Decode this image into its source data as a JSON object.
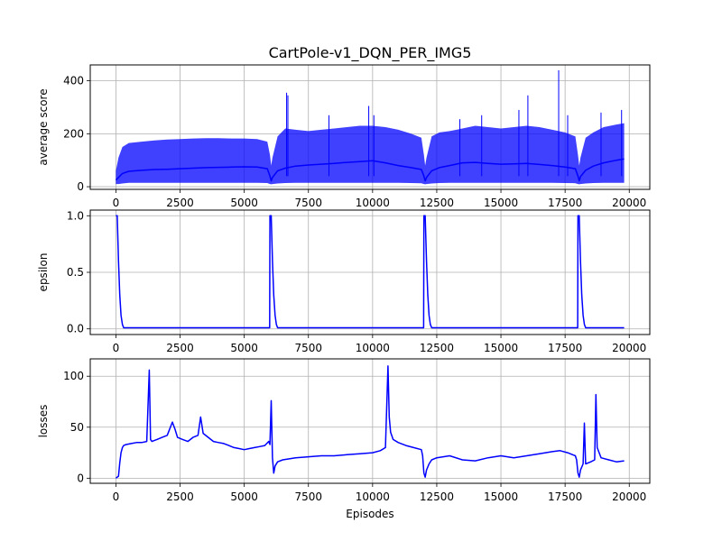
{
  "colors": {
    "line": "#0000ff",
    "band": "#0000ff",
    "grid": "#b0b0b0"
  },
  "chart_data": [
    {
      "type": "line",
      "title": "CartPole-v1_DQN_PER_IMG5",
      "xlabel": "",
      "ylabel": "average score",
      "xlim": [
        -1000,
        20800
      ],
      "ylim": [
        -10,
        460
      ],
      "xticks": [
        0,
        2500,
        5000,
        7500,
        10000,
        12500,
        15000,
        17500,
        20000
      ],
      "xtick_labels": [
        "0",
        "2500",
        "5000",
        "7500",
        "10000",
        "12500",
        "15000",
        "17500",
        "20000"
      ],
      "yticks": [
        0,
        200,
        400
      ],
      "ytick_labels": [
        "0",
        "200",
        "400"
      ],
      "grid": true,
      "series": [
        {
          "name": "",
          "x": [
            0,
            100,
            250,
            500,
            1000,
            1500,
            2000,
            2500,
            3000,
            3500,
            4000,
            4500,
            5000,
            5500,
            5900,
            6000,
            6050,
            6100,
            6300,
            6600,
            7000,
            7500,
            8000,
            8500,
            9000,
            9500,
            10000,
            10500,
            11000,
            11500,
            11900,
            12000,
            12050,
            12100,
            12300,
            12600,
            13000,
            13500,
            14000,
            14500,
            15000,
            15500,
            16000,
            16500,
            17000,
            17500,
            17900,
            18000,
            18050,
            18100,
            18300,
            18600,
            19000,
            19500,
            19800
          ],
          "values": [
            25,
            35,
            50,
            58,
            62,
            65,
            66,
            68,
            70,
            72,
            73,
            74,
            75,
            74,
            68,
            40,
            22,
            35,
            60,
            70,
            78,
            82,
            85,
            88,
            92,
            95,
            98,
            90,
            80,
            72,
            65,
            40,
            22,
            35,
            60,
            72,
            80,
            90,
            92,
            88,
            85,
            86,
            88,
            84,
            80,
            74,
            68,
            40,
            22,
            38,
            62,
            78,
            90,
            100,
            105
          ]
        },
        {
          "name": "",
          "role": "spread-band",
          "x": [
            0,
            100,
            250,
            500,
            1000,
            1500,
            2000,
            2500,
            3000,
            3500,
            4000,
            4500,
            5000,
            5500,
            5900,
            6000,
            6050,
            6100,
            6300,
            6600,
            7000,
            7500,
            8000,
            8500,
            9000,
            9500,
            10000,
            10500,
            11000,
            11500,
            11900,
            12000,
            12050,
            12100,
            12300,
            12600,
            13000,
            13500,
            14000,
            14500,
            15000,
            15500,
            16000,
            16500,
            17000,
            17500,
            17900,
            18000,
            18050,
            18100,
            18300,
            18600,
            19000,
            19500,
            19800
          ],
          "upper": [
            60,
            110,
            150,
            165,
            170,
            175,
            178,
            180,
            182,
            183,
            183,
            182,
            182,
            180,
            170,
            120,
            80,
            110,
            190,
            220,
            215,
            210,
            215,
            220,
            225,
            230,
            230,
            225,
            215,
            200,
            185,
            120,
            80,
            110,
            190,
            205,
            210,
            220,
            230,
            225,
            220,
            225,
            230,
            225,
            215,
            205,
            190,
            120,
            80,
            110,
            185,
            205,
            225,
            235,
            240
          ],
          "lower": [
            10,
            10,
            12,
            15,
            15,
            15,
            15,
            15,
            15,
            15,
            15,
            15,
            15,
            15,
            14,
            10,
            9,
            10,
            12,
            14,
            15,
            15,
            15,
            15,
            15,
            15,
            15,
            15,
            15,
            14,
            13,
            10,
            9,
            10,
            12,
            14,
            15,
            15,
            15,
            15,
            15,
            15,
            15,
            15,
            15,
            14,
            13,
            10,
            9,
            10,
            12,
            14,
            15,
            15,
            15
          ],
          "peaks": [
            [
              6650,
              355
            ],
            [
              6700,
              345
            ],
            [
              8300,
              270
            ],
            [
              9850,
              305
            ],
            [
              10050,
              270
            ],
            [
              13400,
              255
            ],
            [
              14250,
              270
            ],
            [
              15700,
              290
            ],
            [
              16050,
              345
            ],
            [
              17250,
              440
            ],
            [
              17600,
              270
            ],
            [
              18900,
              280
            ],
            [
              19700,
              290
            ]
          ]
        }
      ]
    },
    {
      "type": "line",
      "title": "",
      "xlabel": "",
      "ylabel": "epsilon",
      "xlim": [
        -1000,
        20800
      ],
      "ylim": [
        -0.05,
        1.05
      ],
      "xticks": [
        0,
        2500,
        5000,
        7500,
        10000,
        12500,
        15000,
        17500,
        20000
      ],
      "xtick_labels": [
        "0",
        "2500",
        "5000",
        "7500",
        "10000",
        "12500",
        "15000",
        "17500",
        "20000"
      ],
      "yticks": [
        0.0,
        0.5,
        1.0
      ],
      "ytick_labels": [
        "0.0",
        "0.5",
        "1.0"
      ],
      "grid": true,
      "series": [
        {
          "name": "",
          "x": [
            0,
            50,
            100,
            150,
            200,
            250,
            300,
            5990,
            6000,
            6050,
            6100,
            6150,
            6200,
            6250,
            6300,
            11990,
            12000,
            12050,
            12100,
            12150,
            12200,
            12250,
            12300,
            17990,
            18000,
            18050,
            18100,
            18150,
            18200,
            18250,
            18300,
            19800
          ],
          "values": [
            1.0,
            1.0,
            0.6,
            0.3,
            0.12,
            0.04,
            0.01,
            0.01,
            1.0,
            1.0,
            0.6,
            0.3,
            0.12,
            0.04,
            0.01,
            0.01,
            1.0,
            1.0,
            0.6,
            0.3,
            0.12,
            0.04,
            0.01,
            0.01,
            1.0,
            1.0,
            0.6,
            0.3,
            0.12,
            0.04,
            0.01,
            0.01
          ]
        }
      ]
    },
    {
      "type": "line",
      "title": "",
      "xlabel": "Episodes",
      "ylabel": "losses",
      "xlim": [
        -1000,
        20800
      ],
      "ylim": [
        -5,
        117
      ],
      "xticks": [
        0,
        2500,
        5000,
        7500,
        10000,
        12500,
        15000,
        17500,
        20000
      ],
      "xtick_labels": [
        "0",
        "2500",
        "5000",
        "7500",
        "10000",
        "12500",
        "15000",
        "17500",
        "20000"
      ],
      "yticks": [
        0,
        50,
        100
      ],
      "ytick_labels": [
        "0",
        "50",
        "100"
      ],
      "grid": true,
      "series": [
        {
          "name": "",
          "x": [
            0,
            100,
            150,
            200,
            250,
            300,
            400,
            600,
            800,
            1000,
            1200,
            1300,
            1350,
            1400,
            1600,
            1800,
            2000,
            2200,
            2300,
            2400,
            2600,
            2800,
            3000,
            3200,
            3300,
            3400,
            3600,
            3800,
            4000,
            4200,
            4400,
            4600,
            4800,
            5000,
            5200,
            5400,
            5600,
            5800,
            5950,
            6000,
            6050,
            6100,
            6150,
            6200,
            6300,
            6500,
            7000,
            7500,
            8000,
            8500,
            9000,
            9500,
            10000,
            10300,
            10500,
            10600,
            10650,
            10700,
            10800,
            11000,
            11300,
            11600,
            11900,
            11950,
            12000,
            12050,
            12100,
            12200,
            12300,
            12500,
            13000,
            13500,
            14000,
            14500,
            15000,
            15500,
            16000,
            16500,
            17000,
            17300,
            17600,
            17900,
            17950,
            18000,
            18050,
            18100,
            18200,
            18250,
            18300,
            18500,
            18650,
            18700,
            18750,
            18900,
            19200,
            19500,
            19800
          ],
          "values": [
            0,
            2,
            15,
            25,
            30,
            32,
            33,
            34,
            35,
            35,
            36,
            106,
            38,
            36,
            38,
            40,
            42,
            55,
            48,
            40,
            38,
            36,
            40,
            42,
            60,
            44,
            40,
            36,
            35,
            34,
            32,
            30,
            29,
            28,
            29,
            30,
            31,
            32,
            36,
            33,
            76,
            20,
            5,
            12,
            16,
            18,
            20,
            21,
            22,
            22,
            23,
            24,
            25,
            27,
            30,
            110,
            60,
            45,
            38,
            35,
            32,
            30,
            28,
            22,
            5,
            1,
            8,
            14,
            18,
            20,
            22,
            18,
            17,
            20,
            22,
            20,
            22,
            24,
            26,
            27,
            25,
            22,
            18,
            5,
            1,
            8,
            14,
            54,
            14,
            16,
            18,
            82,
            30,
            20,
            18,
            16,
            17
          ]
        }
      ]
    }
  ]
}
